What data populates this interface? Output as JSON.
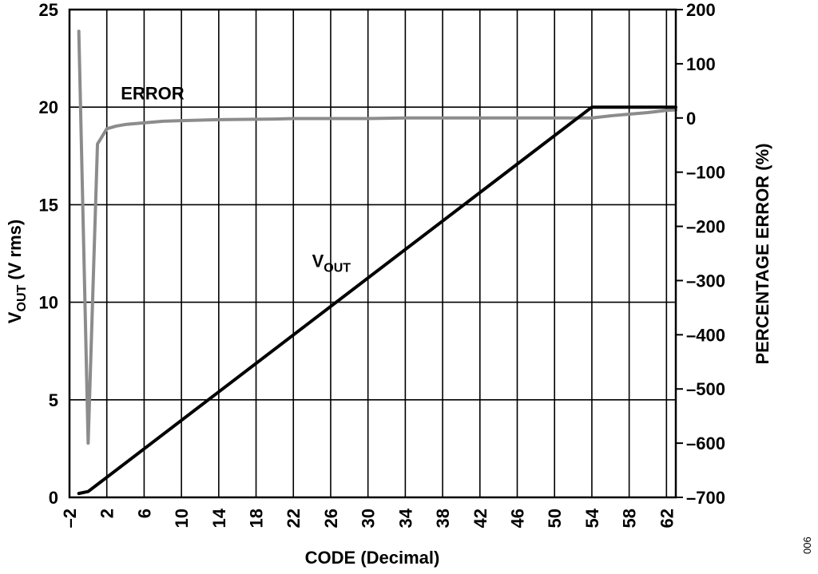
{
  "chart_data": {
    "type": "line",
    "xlabel": "CODE (Decimal)",
    "ylabel": "V",
    "ylabel_sub": "OUT",
    "ylabel_suffix": " (V rms)",
    "y2label": "PERCENTAGE ERROR (%)",
    "xlim": [
      -2,
      63
    ],
    "ylim": [
      0,
      25
    ],
    "y2lim": [
      -700,
      200
    ],
    "x_ticks": [
      "–2",
      "2",
      "6",
      "10",
      "14",
      "18",
      "22",
      "26",
      "30",
      "34",
      "38",
      "42",
      "46",
      "50",
      "54",
      "58",
      "62"
    ],
    "y_ticks": [
      "0",
      "5",
      "10",
      "15",
      "20",
      "25"
    ],
    "y2_ticks": [
      "200",
      "100",
      "0",
      "–100",
      "–200",
      "–300",
      "–400",
      "–500",
      "–600",
      "–700"
    ],
    "grid": true,
    "series": [
      {
        "name": "ERROR",
        "axis": "right",
        "color": "#8c8c8c",
        "x": [
          -1,
          0,
          1,
          2,
          3,
          4,
          6,
          8,
          10,
          14,
          20,
          22,
          30,
          34,
          38,
          46,
          50,
          54,
          56,
          58,
          60,
          62,
          63
        ],
        "y": [
          160,
          -600,
          -48,
          -20,
          -15,
          -12,
          -9,
          -6,
          -5,
          -3,
          -2,
          -1,
          -1,
          0,
          0,
          0,
          0,
          0,
          4,
          7,
          10,
          14,
          15
        ]
      },
      {
        "name_main": "V",
        "name_sub": "OUT",
        "axis": "left",
        "color": "#000000",
        "x": [
          -1,
          0,
          54,
          63
        ],
        "y": [
          0.2,
          0.3,
          20,
          20
        ]
      }
    ],
    "annotations": [
      {
        "main": "ERROR",
        "sub": "",
        "x": 3.5,
        "y": 20.4
      },
      {
        "main": "V",
        "sub": "OUT",
        "x": 24,
        "y": 11.8
      }
    ]
  },
  "figure_id": "006"
}
